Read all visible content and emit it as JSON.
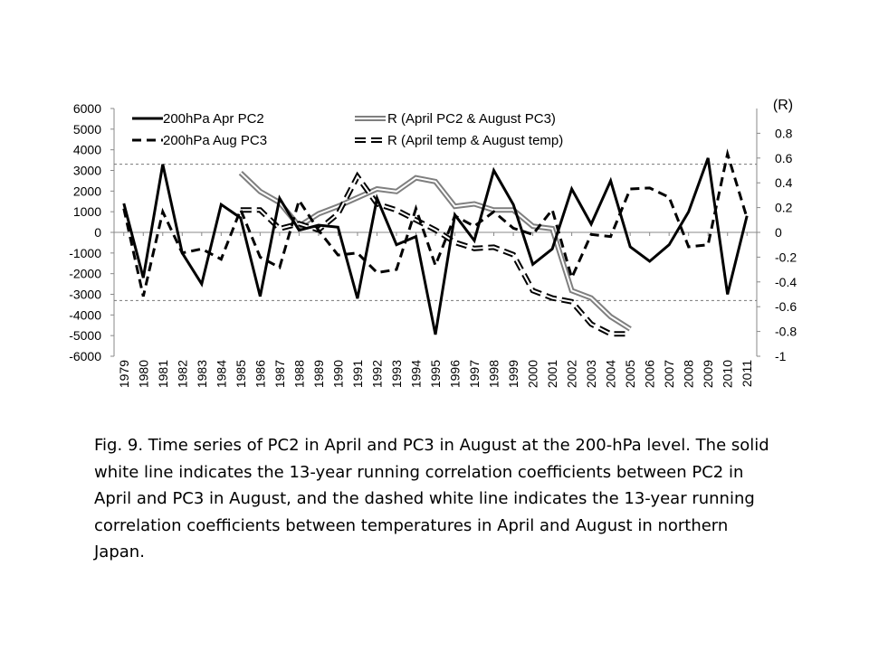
{
  "chart_data": {
    "type": "line",
    "x": [
      1979,
      1980,
      1981,
      1982,
      1983,
      1984,
      1985,
      1986,
      1987,
      1988,
      1989,
      1990,
      1991,
      1992,
      1993,
      1994,
      1995,
      1996,
      1997,
      1998,
      1999,
      2000,
      2001,
      2002,
      2003,
      2004,
      2005,
      2006,
      2007,
      2008,
      2009,
      2010,
      2011
    ],
    "x_tick_labels": [
      "1979",
      "1980",
      "1981",
      "1982",
      "1983",
      "1984",
      "1985",
      "1986",
      "1987",
      "1988",
      "1989",
      "1990",
      "1991",
      "1992",
      "1993",
      "1994",
      "1995",
      "1996",
      "1997",
      "1998",
      "1999",
      "2000",
      "2001",
      "2002",
      "2003",
      "2004",
      "2005",
      "2006",
      "2007",
      "2008",
      "2009",
      "2010",
      "2011"
    ],
    "ylim_left": [
      -6000,
      6000
    ],
    "y_ticks_left": [
      "6000",
      "5000",
      "4000",
      "3000",
      "2000",
      "1000",
      "0",
      "-1000",
      "-2000",
      "-3000",
      "-4000",
      "-5000",
      "-6000"
    ],
    "ylim_right": [
      -1,
      1
    ],
    "y_ticks_right": [
      "0.8",
      "0.6",
      "0.4",
      "0.2",
      "0",
      "-0.2",
      "-0.4",
      "-0.6",
      "-0.8",
      "-1"
    ],
    "right_axis_label": "(R)",
    "significance_levels_right": [
      0.55,
      -0.55
    ],
    "series": [
      {
        "name": "200hPa Apr PC2",
        "axis": "left",
        "style": "solid-black",
        "values": [
          1400,
          -2200,
          3300,
          -1000,
          -2500,
          1350,
          700,
          -3100,
          1650,
          100,
          350,
          250,
          -3200,
          1650,
          -600,
          -200,
          -4950,
          850,
          -400,
          3000,
          1350,
          -1550,
          -800,
          2100,
          400,
          2500,
          -700,
          -1400,
          -600,
          1000,
          3600,
          -3000,
          800
        ]
      },
      {
        "name": "200hPa Aug PC3",
        "axis": "left",
        "style": "dashed-black",
        "values": [
          1150,
          -3100,
          1000,
          -1000,
          -800,
          -1300,
          1100,
          -1200,
          -1700,
          1550,
          100,
          -1100,
          -1000,
          -1950,
          -1800,
          1150,
          -1600,
          800,
          300,
          1000,
          200,
          -100,
          1100,
          -2200,
          -100,
          -200,
          2100,
          2150,
          1700,
          -700,
          -600,
          3800,
          700
        ]
      },
      {
        "name": "R (April PC2 & August PC3)",
        "axis": "right",
        "style": "double-gray",
        "values": [
          null,
          null,
          null,
          null,
          null,
          null,
          0.48,
          0.33,
          0.24,
          0.05,
          0.15,
          0.21,
          0.28,
          0.35,
          0.33,
          0.44,
          0.41,
          0.21,
          0.23,
          0.18,
          0.18,
          0.05,
          0.03,
          -0.47,
          -0.53,
          -0.68,
          -0.78,
          null,
          null,
          null,
          null,
          null,
          null
        ]
      },
      {
        "name": "R (April temp & August temp)",
        "axis": "right",
        "style": "dashed-double",
        "values": [
          null,
          null,
          null,
          null,
          null,
          null,
          0.18,
          0.18,
          0.03,
          0.07,
          0.02,
          0.15,
          0.45,
          0.23,
          0.18,
          0.1,
          0.02,
          -0.08,
          -0.13,
          -0.12,
          -0.18,
          -0.47,
          -0.53,
          -0.56,
          -0.74,
          -0.82,
          -0.82,
          null,
          null,
          null,
          null,
          null,
          null
        ]
      }
    ]
  },
  "caption": "Fig. 9. Time series of PC2 in April and PC3 in August at the 200-hPa level. The solid white line indicates the 13-year running correlation coefficients between PC2 in April and PC3 in August, and the dashed white line indicates the 13-year running correlation coefficients between temperatures in April and August in northern Japan."
}
